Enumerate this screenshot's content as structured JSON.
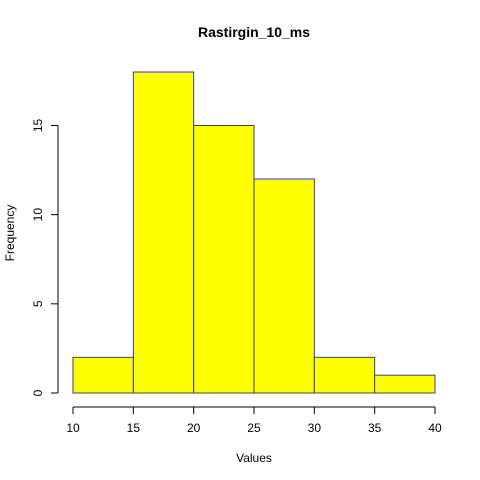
{
  "chart_data": {
    "type": "bar",
    "title": "Rastirgin_10_ms",
    "xlabel": "Values",
    "ylabel": "Frequency",
    "bins": [
      {
        "from": 10,
        "to": 15,
        "count": 2
      },
      {
        "from": 15,
        "to": 20,
        "count": 18
      },
      {
        "from": 20,
        "to": 25,
        "count": 15
      },
      {
        "from": 25,
        "to": 30,
        "count": 12
      },
      {
        "from": 30,
        "to": 35,
        "count": 2
      },
      {
        "from": 35,
        "to": 40,
        "count": 1
      }
    ],
    "xlim": [
      10,
      40
    ],
    "ylim": [
      0,
      18
    ],
    "x_ticks": [
      10,
      15,
      20,
      25,
      30,
      35,
      40
    ],
    "y_ticks": [
      0,
      5,
      10,
      15
    ],
    "bar_color": "#ffff00",
    "bar_border_color": "#3b3b8f",
    "grid": false
  }
}
